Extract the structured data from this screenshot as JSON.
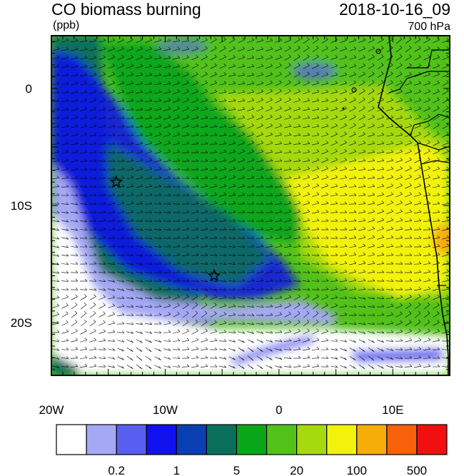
{
  "header": {
    "title": "CO biomass burning",
    "units": "(ppb)",
    "datetime": "2018-10-16_09",
    "level": "700 hPa"
  },
  "map": {
    "lon_range": [
      -20,
      15
    ],
    "lat_range": [
      -24.5,
      4.5
    ],
    "x_ticks": [
      {
        "value": -20,
        "label": "20W"
      },
      {
        "value": -10,
        "label": "10W"
      },
      {
        "value": 0,
        "label": "0"
      },
      {
        "value": 10,
        "label": "10E"
      }
    ],
    "y_ticks": [
      {
        "value": 0,
        "label": "0"
      },
      {
        "value": -10,
        "label": "10S"
      },
      {
        "value": -20,
        "label": "20S"
      }
    ],
    "markers": [
      {
        "symbol": "star",
        "lon": -14.3,
        "lat": -8.0
      },
      {
        "symbol": "star",
        "lon": -5.7,
        "lat": -16.0
      }
    ]
  },
  "colorbar": {
    "colors": [
      "#ffffff",
      "#a5a8f4",
      "#5a5ef0",
      "#1111f0",
      "#0a3fb3",
      "#0b6f5c",
      "#0aa61a",
      "#52c11a",
      "#a6d90e",
      "#f2f20a",
      "#f7ad08",
      "#f7620a",
      "#f20f0f"
    ],
    "labels": [
      {
        "text": "0.2",
        "after_box": 2
      },
      {
        "text": "1",
        "after_box": 4
      },
      {
        "text": "5",
        "after_box": 6
      },
      {
        "text": "20",
        "after_box": 8
      },
      {
        "text": "100",
        "after_box": 10
      },
      {
        "text": "500",
        "after_box": 12
      }
    ]
  }
}
